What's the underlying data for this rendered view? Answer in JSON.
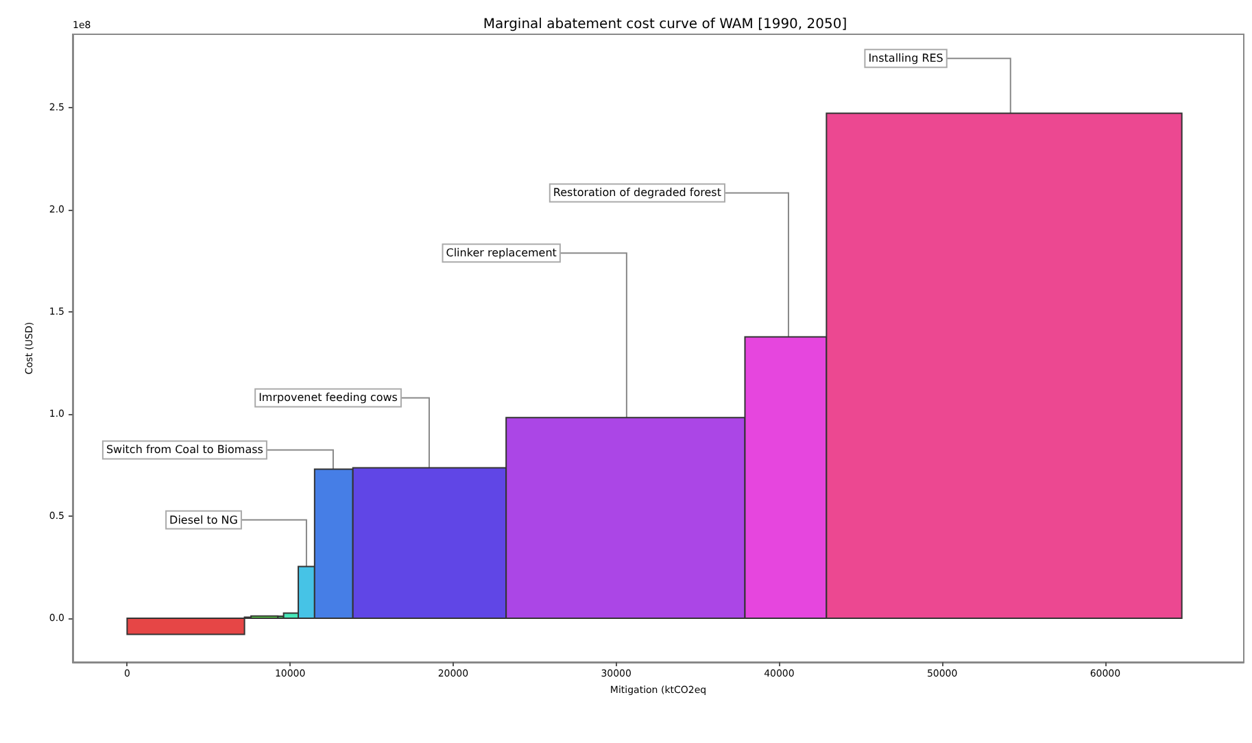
{
  "chart_data": {
    "type": "histogram",
    "title": "Marginal abatement cost curve of WAM [1990, 2050]",
    "xlabel": "Mitigation (ktCO2eq",
    "ylabel": "Cost (USD)",
    "bins": [
      0,
      7200,
      7600,
      9250,
      9600,
      10500,
      11500,
      13850,
      23250,
      37900,
      42900,
      64700
    ],
    "values": [
      -0.079,
      0.005,
      0.011,
      0.01,
      0.025,
      0.253,
      0.73,
      0.737,
      0.983,
      1.378,
      2.473
    ],
    "colors": [
      "#e64646",
      "#8bc34a",
      "#5ee04a",
      "#3ccf5a",
      "#46e6b8",
      "#46c3e6",
      "#467ee6",
      "#6046e6",
      "#ab46e6",
      "#e646de",
      "#ec4891"
    ],
    "xlim": [
      -3340,
      68500
    ],
    "xticks": [
      0,
      10000,
      20000,
      30000,
      40000,
      50000,
      60000
    ],
    "ylim": [
      -0.215,
      2.86
    ],
    "yticks": [
      {
        "value": 0,
        "label": "0.0"
      },
      0.5,
      {
        "value": 1,
        "label": "1.0"
      },
      1.5,
      {
        "value": 2,
        "label": "2.0"
      },
      2.5
    ],
    "grid": false,
    "annotations": [
      "1e8",
      {
        "text": "Diesel to NG",
        "x": 11000,
        "y": 0.253
      },
      {
        "text": "Switch from Coal to Biomass",
        "x": 12640,
        "y": 0.73
      },
      {
        "text": "Imrpovenet feeding cows",
        "x": 18530,
        "y": 0.737
      },
      {
        "text": "Clinker replacement",
        "x": 30640,
        "y": 0.983
      },
      {
        "text": "Restoration of degraded forest",
        "x": 40570,
        "y": 1.378
      },
      {
        "text": "Installing RES",
        "x": 54190,
        "y": 2.473
      }
    ]
  }
}
